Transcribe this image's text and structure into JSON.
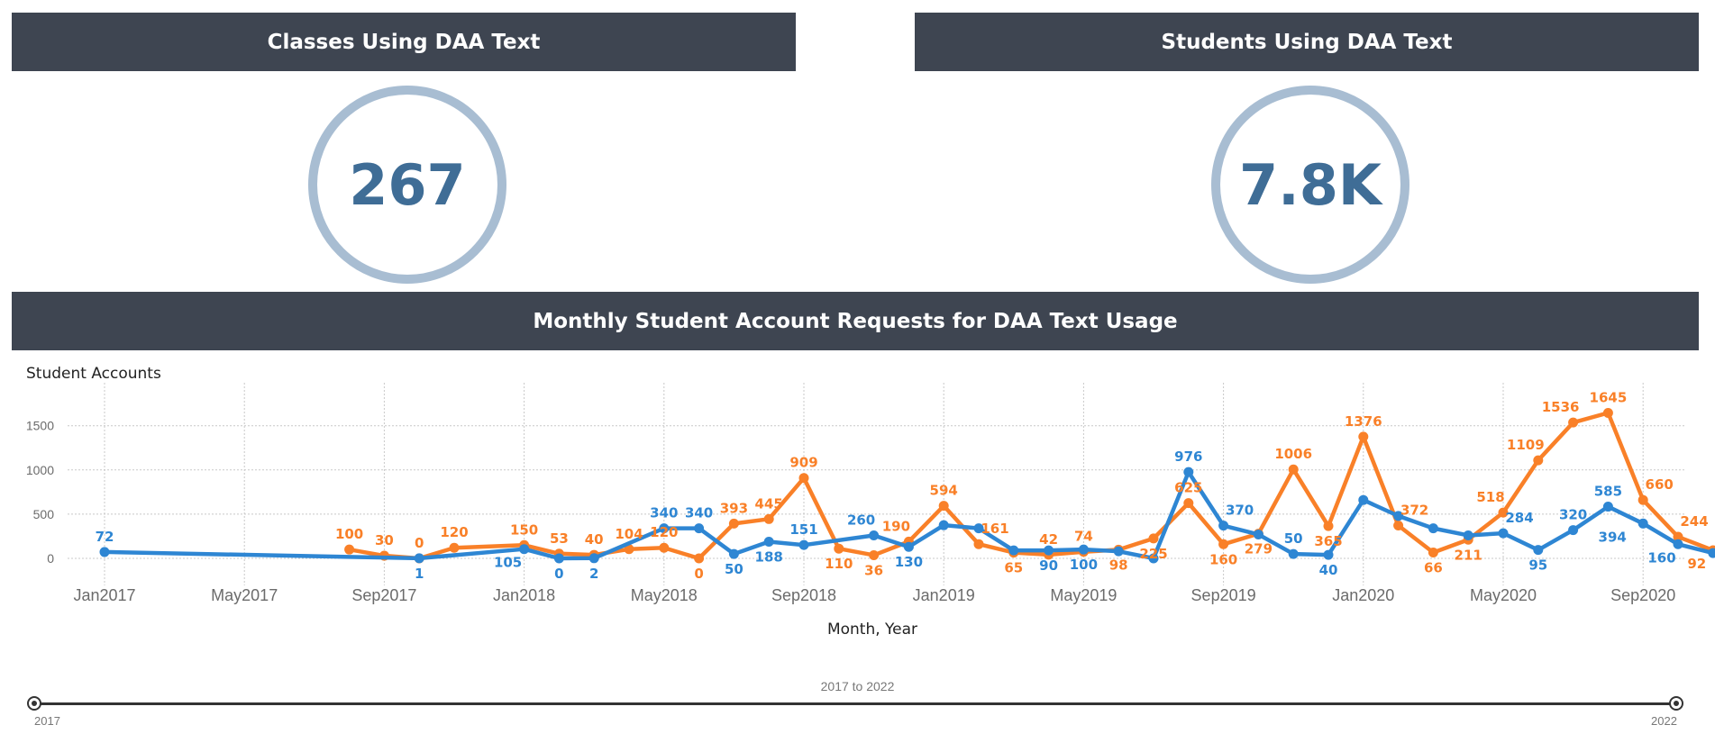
{
  "panels": {
    "classes_title": "Classes Using DAA Text",
    "classes_value": "267",
    "students_title": "Students Using DAA Text",
    "students_value": "7.8K",
    "monthly_title": "Monthly Student Account Requests for DAA Text Usage"
  },
  "slider": {
    "range_label": "2017 to 2022",
    "start_label": "2017",
    "end_label": "2022"
  },
  "colors": {
    "header_bg": "#3e4551",
    "kpi_ring": "#a8bdd2",
    "kpi_text": "#3f6d96",
    "blue_series": "#2e86d3",
    "orange_series": "#f98028"
  },
  "chart_data": {
    "type": "line",
    "title": "",
    "xlabel": "Month, Year",
    "ylabel": "Student Accounts",
    "ylim": [
      -250,
      2000
    ],
    "yticks": [
      0,
      500,
      1000,
      1500
    ],
    "xticks": [
      "Jan2017",
      "May2017",
      "Sep2017",
      "Jan2018",
      "May2018",
      "Sep2018",
      "Jan2019",
      "May2019",
      "Sep2019",
      "Jan2020",
      "May2020",
      "Sep2020"
    ],
    "grid": true,
    "series": [
      {
        "color": "#2e86d3",
        "points": [
          {
            "x": "2017-01",
            "y": 72,
            "label": "72",
            "pos": "above"
          },
          {
            "x": "2017-10",
            "y": 1,
            "label": "1",
            "pos": "below"
          },
          {
            "x": "2018-01",
            "y": 105,
            "label": "105",
            "pos": "below-left"
          },
          {
            "x": "2018-02",
            "y": 0,
            "label": "0",
            "pos": "below"
          },
          {
            "x": "2018-03",
            "y": 2,
            "label": "2",
            "pos": "below"
          },
          {
            "x": "2018-05",
            "y": 340,
            "label": "340",
            "pos": "above"
          },
          {
            "x": "2018-06",
            "y": 340,
            "label": "340",
            "pos": "above"
          },
          {
            "x": "2018-07",
            "y": 50,
            "label": "50",
            "pos": "below"
          },
          {
            "x": "2018-08",
            "y": 188,
            "label": "188",
            "pos": "below"
          },
          {
            "x": "2018-09",
            "y": 151,
            "label": "151",
            "pos": "above"
          },
          {
            "x": "2018-11",
            "y": 260,
            "label": "260",
            "pos": "above-left"
          },
          {
            "x": "2018-12",
            "y": 130,
            "label": "130",
            "pos": "below"
          },
          {
            "x": "2019-01",
            "y": 375,
            "label": "",
            "pos": "above"
          },
          {
            "x": "2019-02",
            "y": 340,
            "label": "",
            "pos": "above"
          },
          {
            "x": "2019-03",
            "y": 90,
            "label": "",
            "pos": "above"
          },
          {
            "x": "2019-04",
            "y": 90,
            "label": "90",
            "pos": "below"
          },
          {
            "x": "2019-05",
            "y": 100,
            "label": "100",
            "pos": "below"
          },
          {
            "x": "2019-06",
            "y": 80,
            "label": "",
            "pos": "above"
          },
          {
            "x": "2019-07",
            "y": 0,
            "label": "",
            "pos": "above"
          },
          {
            "x": "2019-08",
            "y": 976,
            "label": "976",
            "pos": "above"
          },
          {
            "x": "2019-09",
            "y": 370,
            "label": "370",
            "pos": "above-right"
          },
          {
            "x": "2019-10",
            "y": 270,
            "label": "",
            "pos": "above"
          },
          {
            "x": "2019-11",
            "y": 50,
            "label": "50",
            "pos": "above"
          },
          {
            "x": "2019-12",
            "y": 40,
            "label": "40",
            "pos": "below"
          },
          {
            "x": "2020-01",
            "y": 660,
            "label": "",
            "pos": "above"
          },
          {
            "x": "2020-02",
            "y": 480,
            "label": "",
            "pos": "above"
          },
          {
            "x": "2020-03",
            "y": 340,
            "label": "",
            "pos": "above"
          },
          {
            "x": "2020-04",
            "y": 260,
            "label": "",
            "pos": "above"
          },
          {
            "x": "2020-05",
            "y": 284,
            "label": "284",
            "pos": "above-right"
          },
          {
            "x": "2020-06",
            "y": 95,
            "label": "95",
            "pos": "below"
          },
          {
            "x": "2020-07",
            "y": 320,
            "label": "320",
            "pos": "above"
          },
          {
            "x": "2020-08",
            "y": 585,
            "label": "585",
            "pos": "above"
          },
          {
            "x": "2020-09",
            "y": 394,
            "label": "394",
            "pos": "left"
          },
          {
            "x": "2020-10",
            "y": 160,
            "label": "160",
            "pos": "below-left"
          },
          {
            "x": "2020-11",
            "y": 60,
            "label": "",
            "pos": "above"
          }
        ]
      },
      {
        "color": "#f98028",
        "points": [
          {
            "x": "2017-08",
            "y": 100,
            "label": "100",
            "pos": "above"
          },
          {
            "x": "2017-09",
            "y": 30,
            "label": "30",
            "pos": "above"
          },
          {
            "x": "2017-10",
            "y": 0,
            "label": "0",
            "pos": "above"
          },
          {
            "x": "2017-11",
            "y": 120,
            "label": "120",
            "pos": "above"
          },
          {
            "x": "2018-01",
            "y": 150,
            "label": "150",
            "pos": "above"
          },
          {
            "x": "2018-02",
            "y": 53,
            "label": "53",
            "pos": "above"
          },
          {
            "x": "2018-03",
            "y": 40,
            "label": "40",
            "pos": "above"
          },
          {
            "x": "2018-04",
            "y": 104,
            "label": "104",
            "pos": "above"
          },
          {
            "x": "2018-05",
            "y": 120,
            "label": "120",
            "pos": "above"
          },
          {
            "x": "2018-06",
            "y": 0,
            "label": "0",
            "pos": "below"
          },
          {
            "x": "2018-07",
            "y": 393,
            "label": "393",
            "pos": "above"
          },
          {
            "x": "2018-08",
            "y": 445,
            "label": "445",
            "pos": "above"
          },
          {
            "x": "2018-09",
            "y": 909,
            "label": "909",
            "pos": "above"
          },
          {
            "x": "2018-10",
            "y": 110,
            "label": "110",
            "pos": "below"
          },
          {
            "x": "2018-11",
            "y": 36,
            "label": "36",
            "pos": "below"
          },
          {
            "x": "2018-12",
            "y": 190,
            "label": "190",
            "pos": "above-left"
          },
          {
            "x": "2019-01",
            "y": 594,
            "label": "594",
            "pos": "above"
          },
          {
            "x": "2019-02",
            "y": 161,
            "label": "161",
            "pos": "above-right"
          },
          {
            "x": "2019-03",
            "y": 65,
            "label": "65",
            "pos": "below"
          },
          {
            "x": "2019-04",
            "y": 42,
            "label": "42",
            "pos": "above"
          },
          {
            "x": "2019-05",
            "y": 74,
            "label": "74",
            "pos": "above"
          },
          {
            "x": "2019-06",
            "y": 98,
            "label": "98",
            "pos": "below"
          },
          {
            "x": "2019-07",
            "y": 225,
            "label": "225",
            "pos": "below"
          },
          {
            "x": "2019-08",
            "y": 625,
            "label": "625",
            "pos": "above"
          },
          {
            "x": "2019-09",
            "y": 160,
            "label": "160",
            "pos": "below"
          },
          {
            "x": "2019-10",
            "y": 279,
            "label": "279",
            "pos": "below"
          },
          {
            "x": "2019-11",
            "y": 1006,
            "label": "1006",
            "pos": "above"
          },
          {
            "x": "2019-12",
            "y": 365,
            "label": "365",
            "pos": "below"
          },
          {
            "x": "2020-01",
            "y": 1376,
            "label": "1376",
            "pos": "above"
          },
          {
            "x": "2020-02",
            "y": 372,
            "label": "372",
            "pos": "above-right"
          },
          {
            "x": "2020-03",
            "y": 66,
            "label": "66",
            "pos": "below"
          },
          {
            "x": "2020-04",
            "y": 211,
            "label": "211",
            "pos": "below"
          },
          {
            "x": "2020-05",
            "y": 518,
            "label": "518",
            "pos": "above-left"
          },
          {
            "x": "2020-06",
            "y": 1109,
            "label": "1109",
            "pos": "above-left"
          },
          {
            "x": "2020-07",
            "y": 1536,
            "label": "1536",
            "pos": "above-left"
          },
          {
            "x": "2020-08",
            "y": 1645,
            "label": "1645",
            "pos": "above"
          },
          {
            "x": "2020-09",
            "y": 660,
            "label": "660",
            "pos": "above-right"
          },
          {
            "x": "2020-10",
            "y": 244,
            "label": "244",
            "pos": "above-right"
          },
          {
            "x": "2020-11",
            "y": 92,
            "label": "92",
            "pos": "below-left"
          }
        ]
      }
    ]
  }
}
